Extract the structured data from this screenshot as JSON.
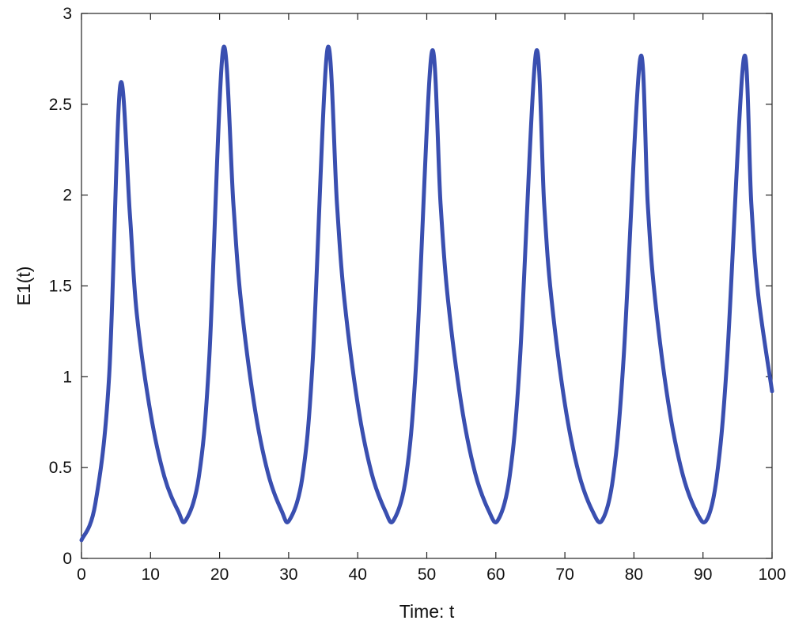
{
  "chart_data": {
    "type": "line",
    "title": "",
    "xlabel": "Time: t",
    "ylabel": "E1(t)",
    "xlim": [
      0,
      100
    ],
    "ylim": [
      0,
      3
    ],
    "xticks": [
      "0",
      "10",
      "20",
      "30",
      "40",
      "50",
      "60",
      "70",
      "80",
      "90",
      "100"
    ],
    "yticks": [
      "0",
      "0.5",
      "1",
      "1.5",
      "2",
      "2.5",
      "3"
    ],
    "grid": false,
    "line_color": "#3a4fb0",
    "series": [
      {
        "x": [
          0,
          2,
          4,
          5.6,
          7,
          8,
          10,
          12,
          14,
          15.1,
          17,
          18.5,
          20.5,
          22,
          23,
          25,
          27,
          29,
          30.1,
          32,
          33.5,
          35.6,
          37,
          38,
          40,
          42,
          44,
          45.2,
          47,
          48.5,
          50.7,
          52,
          53,
          55,
          57,
          59,
          60.3,
          62,
          63.5,
          65.8,
          67,
          68,
          70,
          72,
          74,
          75.4,
          77,
          78.5,
          80.9,
          82,
          83,
          85,
          87,
          89,
          90.5,
          92,
          93.5,
          95.9,
          97,
          98,
          100
        ],
        "y": [
          0.1,
          0.3,
          1.0,
          2.6,
          1.9,
          1.35,
          0.8,
          0.45,
          0.26,
          0.21,
          0.45,
          1.1,
          2.8,
          1.95,
          1.45,
          0.85,
          0.47,
          0.26,
          0.21,
          0.45,
          1.1,
          2.8,
          1.95,
          1.45,
          0.85,
          0.47,
          0.26,
          0.21,
          0.45,
          1.1,
          2.78,
          1.95,
          1.45,
          0.85,
          0.47,
          0.26,
          0.21,
          0.45,
          1.1,
          2.78,
          1.95,
          1.45,
          0.85,
          0.47,
          0.26,
          0.21,
          0.45,
          1.1,
          2.75,
          1.95,
          1.45,
          0.85,
          0.47,
          0.26,
          0.21,
          0.45,
          1.1,
          2.75,
          1.95,
          1.45,
          0.92
        ]
      }
    ]
  }
}
